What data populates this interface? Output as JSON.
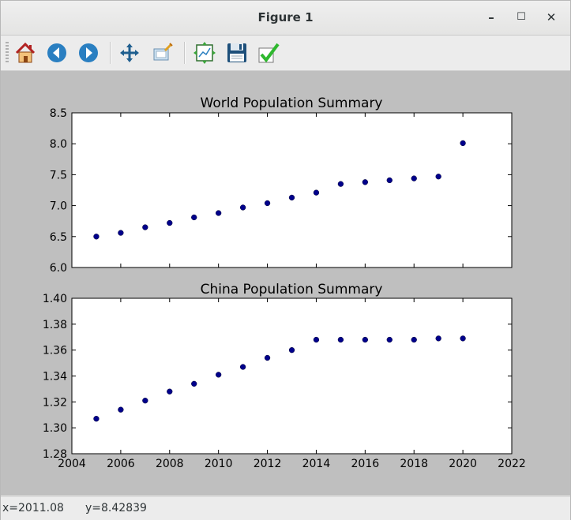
{
  "window": {
    "title": "Figure 1",
    "minimize_label": "–",
    "maximize_label": "☐",
    "close_label": "✕"
  },
  "toolbar": {
    "buttons": [
      {
        "icon": "home-icon"
      },
      {
        "icon": "back-arrow-icon"
      },
      {
        "icon": "forward-arrow-icon"
      },
      {
        "icon": "pan-move-icon"
      },
      {
        "icon": "zoom-rect-icon"
      },
      {
        "icon": "subplots-config-icon"
      },
      {
        "icon": "save-floppy-icon"
      },
      {
        "icon": "edit-checkmark-icon"
      }
    ]
  },
  "status": {
    "x_readout": "x=2011.08",
    "y_readout": "y=8.42839"
  },
  "colors": {
    "canvas_bg": "#bfbfbf",
    "axes_bg": "#ffffff",
    "marker": "#00008b"
  },
  "chart_data": [
    {
      "type": "scatter",
      "title": "World Population Summary",
      "x": [
        2005,
        2006,
        2007,
        2008,
        2009,
        2010,
        2011,
        2012,
        2013,
        2014,
        2015,
        2016,
        2017,
        2018,
        2019,
        2020
      ],
      "y": [
        6.5,
        6.56,
        6.65,
        6.72,
        6.81,
        6.88,
        6.97,
        7.04,
        7.13,
        7.21,
        7.35,
        7.38,
        7.41,
        7.44,
        7.47,
        8.01
      ],
      "xlim": [
        2004,
        2022
      ],
      "ylim": [
        6.0,
        8.5
      ],
      "xticks_shown": false,
      "yticks": [
        "6.0",
        "6.5",
        "7.0",
        "7.5",
        "8.0",
        "8.5"
      ],
      "grid": false
    },
    {
      "type": "scatter",
      "title": "China Population Summary",
      "x": [
        2005,
        2006,
        2007,
        2008,
        2009,
        2010,
        2011,
        2012,
        2013,
        2014,
        2015,
        2016,
        2017,
        2018,
        2019,
        2020
      ],
      "y": [
        1.307,
        1.314,
        1.321,
        1.328,
        1.334,
        1.341,
        1.347,
        1.354,
        1.36,
        1.368,
        1.368,
        1.368,
        1.368,
        1.368,
        1.369,
        1.369
      ],
      "xlim": [
        2004,
        2022
      ],
      "ylim": [
        1.28,
        1.4
      ],
      "xticks": [
        "2004",
        "2006",
        "2008",
        "2010",
        "2012",
        "2014",
        "2016",
        "2018",
        "2020",
        "2022"
      ],
      "yticks": [
        "1.28",
        "1.30",
        "1.32",
        "1.34",
        "1.36",
        "1.38",
        "1.40"
      ],
      "grid": false
    }
  ]
}
